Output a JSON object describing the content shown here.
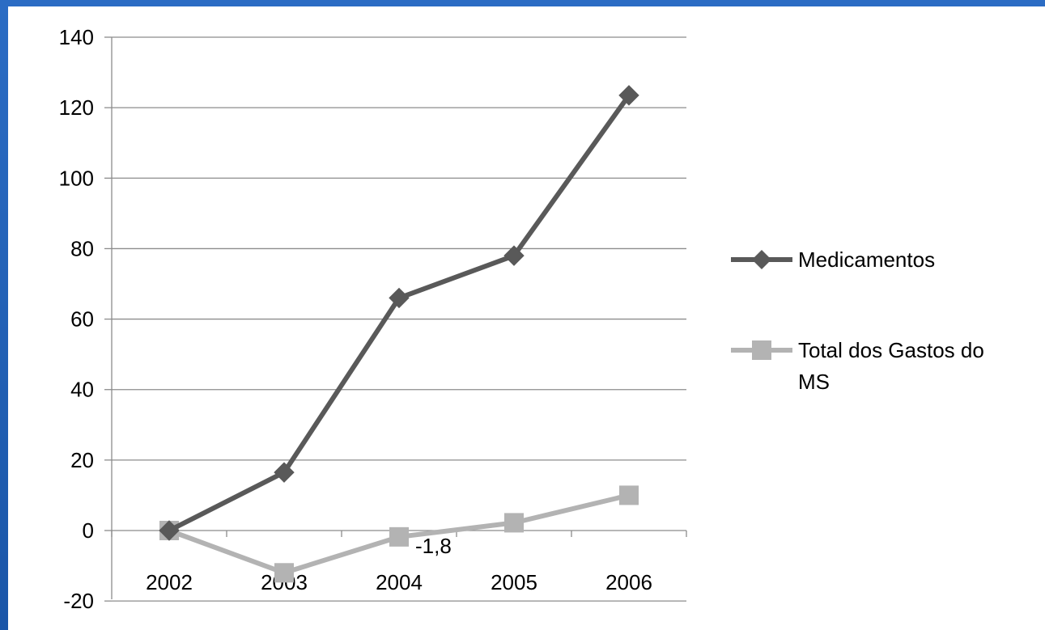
{
  "chart_data": {
    "type": "line",
    "categories": [
      "2002",
      "2003",
      "2004",
      "2005",
      "2006"
    ],
    "y_ticks": [
      "140",
      "120",
      "100",
      "80",
      "60",
      "40",
      "20",
      "0",
      "-20"
    ],
    "ylim": [
      -20,
      140
    ],
    "grid": true,
    "legend_position": "right",
    "series": [
      {
        "name": "Medicamentos",
        "values": [
          0,
          16.5,
          66,
          78,
          123.5
        ],
        "color": "#595959",
        "marker": "diamond"
      },
      {
        "name": "Total dos Gastos do MS",
        "values": [
          0,
          -12,
          -1.8,
          2.2,
          10
        ],
        "color": "#b3b3b3",
        "marker": "square"
      }
    ],
    "annotations": [
      {
        "series": 1,
        "category_index": 2,
        "text": "-1,8"
      }
    ]
  }
}
